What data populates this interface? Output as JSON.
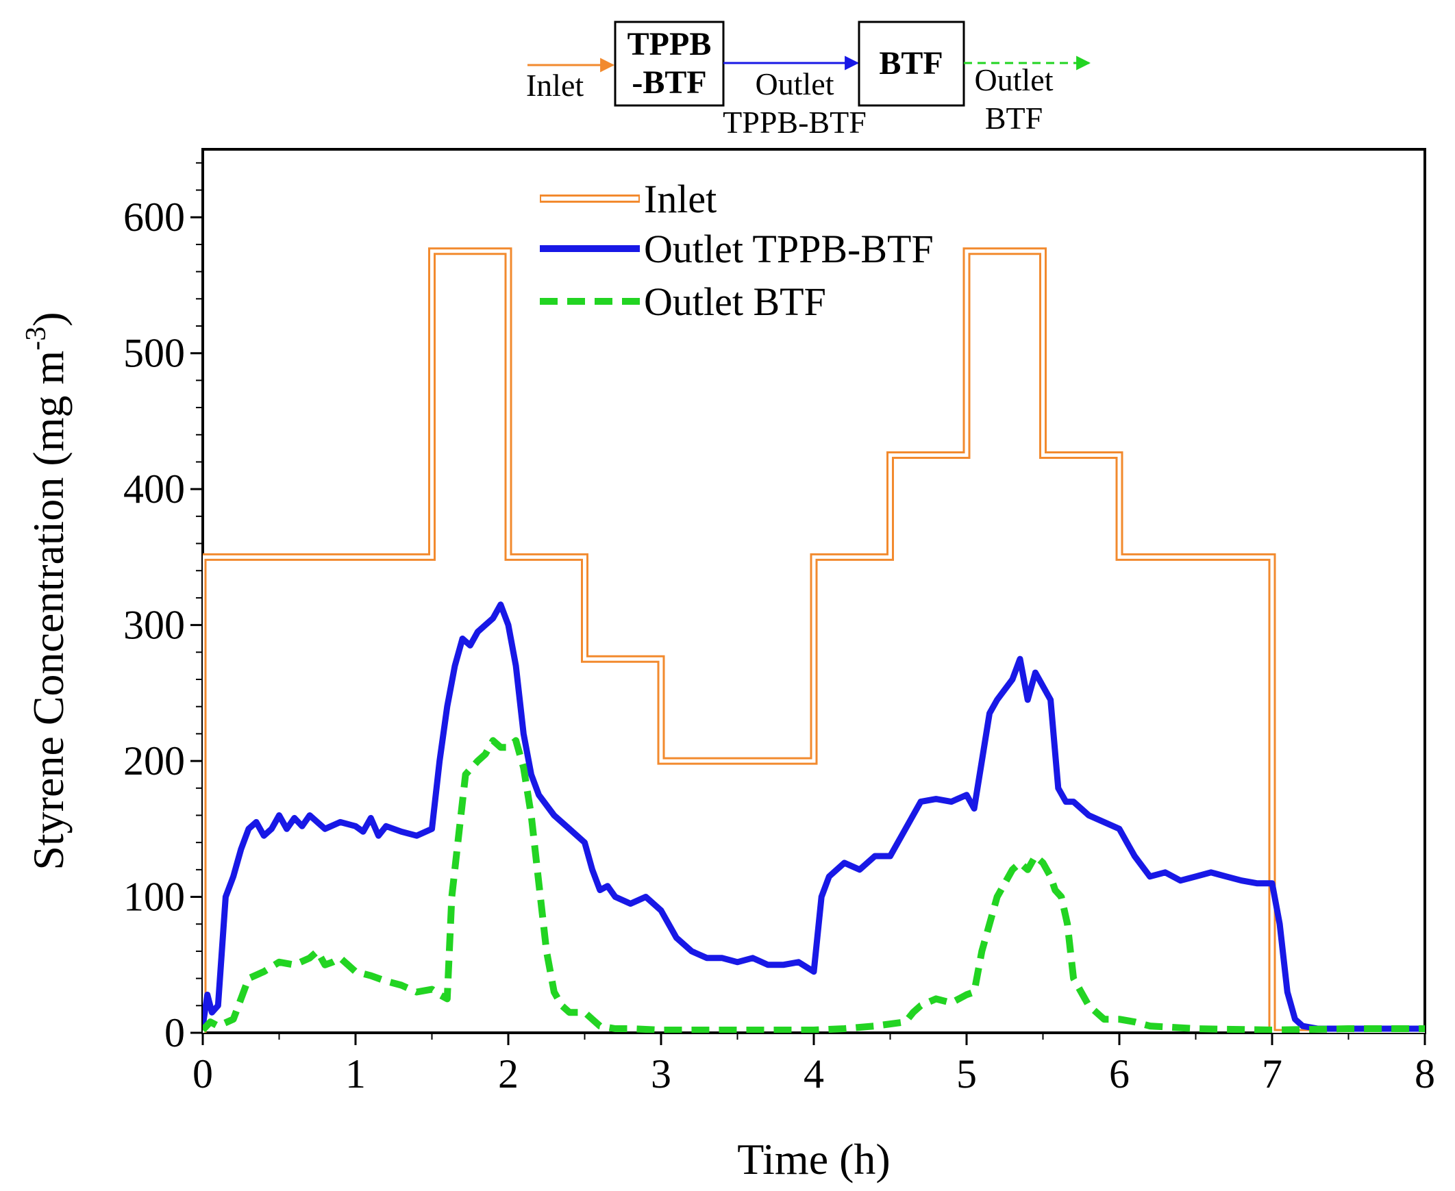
{
  "flow_diagram": {
    "inlet_label": "Inlet",
    "box1_line1": "TPPB",
    "box1_line2": "-BTF",
    "outlet1_line1": "Outlet",
    "outlet1_line2": "TPPB-BTF",
    "box2_label": "BTF",
    "outlet2_line1": "Outlet",
    "outlet2_line2": "BTF",
    "colors": {
      "inlet": "#f28a2e",
      "outlet_tppb": "#1818e6",
      "outlet_btf": "#22d422"
    }
  },
  "chart_data": {
    "type": "line",
    "title": "",
    "xlabel": "Time (h)",
    "ylabel_main": "Styrene Concentration (mg m",
    "ylabel_sup": "-3",
    "ylabel_close": ")",
    "xlim": [
      0,
      8
    ],
    "ylim": [
      0,
      650
    ],
    "xticks": [
      "0",
      "1",
      "2",
      "3",
      "4",
      "5",
      "6",
      "7",
      "8"
    ],
    "yticks": [
      "0",
      "100",
      "200",
      "300",
      "400",
      "500",
      "600"
    ],
    "legend_position": "top-center",
    "series": [
      {
        "name": "Inlet",
        "style": "double-line",
        "color": "#f28a2e",
        "x": [
          0,
          0,
          1.5,
          1.5,
          2.0,
          2.0,
          2.5,
          2.5,
          3.0,
          3.0,
          4.0,
          4.0,
          4.5,
          4.5,
          5.0,
          5.0,
          5.5,
          5.5,
          6.0,
          6.0,
          7.0,
          7.0,
          8.0
        ],
        "y": [
          0,
          350,
          350,
          575,
          575,
          350,
          350,
          275,
          275,
          200,
          200,
          350,
          350,
          425,
          425,
          575,
          575,
          425,
          425,
          350,
          350,
          0,
          0
        ]
      },
      {
        "name": "Outlet TPPB-BTF",
        "style": "solid",
        "color": "#1818e6",
        "x": [
          0,
          0.03,
          0.06,
          0.1,
          0.15,
          0.2,
          0.25,
          0.3,
          0.35,
          0.4,
          0.45,
          0.5,
          0.55,
          0.6,
          0.65,
          0.7,
          0.8,
          0.9,
          1.0,
          1.05,
          1.1,
          1.15,
          1.2,
          1.3,
          1.4,
          1.5,
          1.55,
          1.6,
          1.65,
          1.7,
          1.75,
          1.8,
          1.85,
          1.9,
          1.95,
          2.0,
          2.05,
          2.1,
          2.15,
          2.2,
          2.3,
          2.4,
          2.45,
          2.5,
          2.55,
          2.6,
          2.65,
          2.7,
          2.8,
          2.9,
          3.0,
          3.1,
          3.2,
          3.3,
          3.4,
          3.5,
          3.6,
          3.7,
          3.8,
          3.9,
          4.0,
          4.05,
          4.1,
          4.2,
          4.3,
          4.4,
          4.5,
          4.6,
          4.7,
          4.8,
          4.9,
          5.0,
          5.05,
          5.1,
          5.15,
          5.2,
          5.3,
          5.35,
          5.4,
          5.45,
          5.5,
          5.55,
          5.6,
          5.65,
          5.7,
          5.8,
          5.9,
          6.0,
          6.05,
          6.1,
          6.2,
          6.3,
          6.4,
          6.5,
          6.6,
          6.7,
          6.8,
          6.9,
          7.0,
          7.05,
          7.1,
          7.15,
          7.2,
          7.3,
          7.5,
          7.7,
          8.0
        ],
        "y": [
          5,
          28,
          15,
          20,
          100,
          115,
          135,
          150,
          155,
          145,
          150,
          160,
          150,
          158,
          152,
          160,
          150,
          155,
          152,
          148,
          158,
          145,
          152,
          148,
          145,
          150,
          200,
          240,
          270,
          290,
          285,
          295,
          300,
          305,
          315,
          300,
          270,
          220,
          190,
          175,
          160,
          150,
          145,
          140,
          120,
          105,
          108,
          100,
          95,
          100,
          90,
          70,
          60,
          55,
          55,
          52,
          55,
          50,
          50,
          52,
          45,
          100,
          115,
          125,
          120,
          130,
          130,
          150,
          170,
          172,
          170,
          175,
          165,
          200,
          235,
          245,
          260,
          275,
          245,
          265,
          255,
          245,
          180,
          170,
          170,
          160,
          155,
          150,
          140,
          130,
          115,
          118,
          112,
          115,
          118,
          115,
          112,
          110,
          110,
          80,
          30,
          10,
          5,
          3,
          3,
          3,
          3
        ]
      },
      {
        "name": "Outlet BTF",
        "style": "dashed",
        "color": "#22d422",
        "x": [
          0,
          0.05,
          0.1,
          0.2,
          0.25,
          0.3,
          0.4,
          0.5,
          0.6,
          0.7,
          0.75,
          0.8,
          0.85,
          0.9,
          1.0,
          1.1,
          1.2,
          1.3,
          1.4,
          1.5,
          1.55,
          1.6,
          1.63,
          1.68,
          1.72,
          1.8,
          1.85,
          1.9,
          1.95,
          2.0,
          2.05,
          2.1,
          2.15,
          2.2,
          2.25,
          2.3,
          2.35,
          2.4,
          2.5,
          2.55,
          2.6,
          2.7,
          2.8,
          3.0,
          3.5,
          4.0,
          4.2,
          4.4,
          4.6,
          4.65,
          4.7,
          4.8,
          4.9,
          5.0,
          5.05,
          5.1,
          5.15,
          5.2,
          5.25,
          5.3,
          5.35,
          5.4,
          5.45,
          5.5,
          5.55,
          5.58,
          5.62,
          5.66,
          5.7,
          5.8,
          5.9,
          6.0,
          6.1,
          6.2,
          6.5,
          7.0,
          7.5,
          8.0
        ],
        "y": [
          2,
          8,
          5,
          10,
          25,
          40,
          45,
          52,
          50,
          55,
          60,
          50,
          52,
          55,
          45,
          42,
          38,
          35,
          30,
          32,
          28,
          25,
          100,
          150,
          190,
          200,
          205,
          215,
          210,
          210,
          215,
          195,
          160,
          110,
          60,
          30,
          20,
          15,
          15,
          10,
          5,
          3,
          3,
          2,
          2,
          2,
          3,
          5,
          8,
          15,
          20,
          25,
          22,
          28,
          30,
          60,
          80,
          100,
          110,
          120,
          125,
          120,
          130,
          125,
          115,
          105,
          100,
          80,
          40,
          20,
          10,
          10,
          8,
          5,
          3,
          2,
          3,
          3
        ]
      }
    ]
  }
}
